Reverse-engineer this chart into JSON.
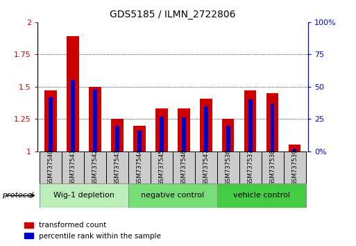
{
  "title": "GDS5185 / ILMN_2722806",
  "samples": [
    "GSM737540",
    "GSM737541",
    "GSM737542",
    "GSM737543",
    "GSM737544",
    "GSM737545",
    "GSM737546",
    "GSM737547",
    "GSM737536",
    "GSM737537",
    "GSM737538",
    "GSM737539"
  ],
  "red_values": [
    1.47,
    1.89,
    1.5,
    1.25,
    1.2,
    1.33,
    1.33,
    1.41,
    1.25,
    1.47,
    1.45,
    1.05
  ],
  "blue_pct": [
    42,
    55,
    48,
    20,
    16,
    27,
    26,
    35,
    20,
    40,
    37,
    2
  ],
  "ylim_left": [
    1.0,
    2.0
  ],
  "ylim_right": [
    0,
    100
  ],
  "yticks_left": [
    1.0,
    1.25,
    1.5,
    1.75,
    2.0
  ],
  "yticks_right": [
    0,
    25,
    50,
    75,
    100
  ],
  "ytick_labels_left": [
    "1",
    "1.25",
    "1.5",
    "1.75",
    "2"
  ],
  "ytick_labels_right": [
    "0%",
    "25",
    "50",
    "75",
    "100%"
  ],
  "groups": [
    {
      "label": "Wig-1 depletion",
      "start": 0,
      "end": 3,
      "color": "#bbeebb"
    },
    {
      "label": "negative control",
      "start": 4,
      "end": 7,
      "color": "#77dd77"
    },
    {
      "label": "vehicle control",
      "start": 8,
      "end": 11,
      "color": "#44cc44"
    }
  ],
  "red_bar_width": 0.55,
  "blue_bar_width": 0.18,
  "red_color": "#cc0000",
  "blue_color": "#0000cc",
  "bg_plot": "#ffffff",
  "sample_bg": "#cccccc",
  "legend_red": "transformed count",
  "legend_blue": "percentile rank within the sample",
  "protocol_label": "protocol",
  "left_axis_color": "#cc0000",
  "right_axis_color": "#0000cc"
}
